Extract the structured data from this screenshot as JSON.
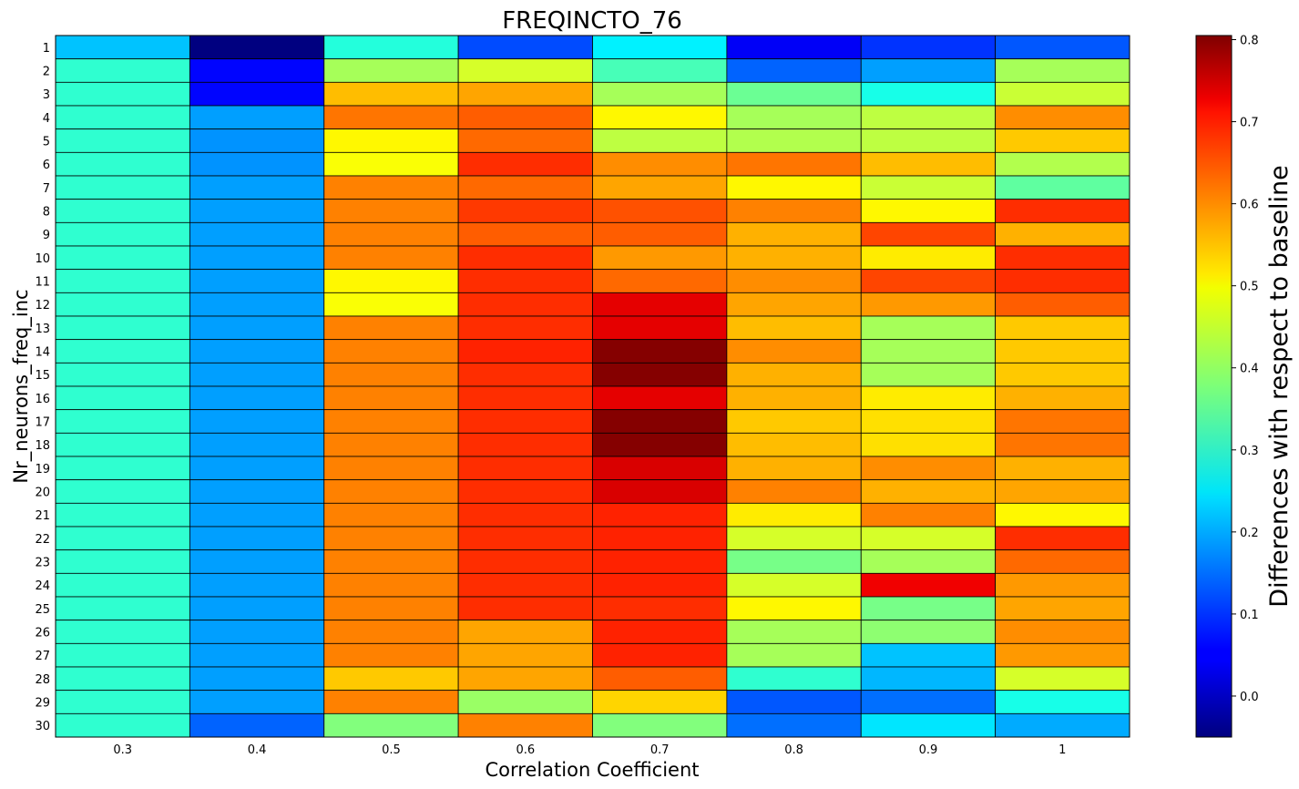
{
  "chart_data": {
    "type": "heatmap",
    "title": "FREQINCTO_76",
    "xlabel": "Correlation Coefficient",
    "ylabel": "Nr_neurons_freq_inc",
    "colorbar_label": "Differences with respect to baseline",
    "colormap": "jet",
    "vmin": -0.05,
    "vmax": 0.805,
    "colorbar_ticks": [
      "0.0",
      "0.1",
      "0.2",
      "0.3",
      "0.4",
      "0.5",
      "0.6",
      "0.7",
      "0.8"
    ],
    "x_categories": [
      "0.3",
      "0.4",
      "0.5",
      "0.6",
      "0.7",
      "0.8",
      "0.9",
      "1"
    ],
    "y_categories": [
      "1",
      "2",
      "3",
      "4",
      "5",
      "6",
      "7",
      "8",
      "9",
      "10",
      "11",
      "12",
      "13",
      "14",
      "15",
      "16",
      "17",
      "18",
      "19",
      "20",
      "21",
      "22",
      "23",
      "24",
      "25",
      "26",
      "27",
      "28",
      "29",
      "30"
    ],
    "values": [
      [
        0.22,
        -0.05,
        0.3,
        0.12,
        0.26,
        0.05,
        0.1,
        0.13
      ],
      [
        0.31,
        0.06,
        0.41,
        0.45,
        0.33,
        0.14,
        0.19,
        0.41
      ],
      [
        0.31,
        0.06,
        0.54,
        0.56,
        0.41,
        0.36,
        0.29,
        0.44
      ],
      [
        0.31,
        0.19,
        0.6,
        0.62,
        0.49,
        0.41,
        0.43,
        0.58
      ],
      [
        0.31,
        0.18,
        0.49,
        0.61,
        0.43,
        0.42,
        0.43,
        0.53
      ],
      [
        0.31,
        0.18,
        0.48,
        0.66,
        0.58,
        0.6,
        0.54,
        0.42
      ],
      [
        0.31,
        0.19,
        0.59,
        0.61,
        0.56,
        0.49,
        0.44,
        0.35
      ],
      [
        0.31,
        0.19,
        0.59,
        0.65,
        0.63,
        0.59,
        0.49,
        0.66
      ],
      [
        0.31,
        0.19,
        0.59,
        0.62,
        0.62,
        0.55,
        0.64,
        0.55
      ],
      [
        0.31,
        0.19,
        0.59,
        0.66,
        0.57,
        0.55,
        0.5,
        0.66
      ],
      [
        0.31,
        0.19,
        0.49,
        0.66,
        0.61,
        0.58,
        0.64,
        0.66
      ],
      [
        0.31,
        0.19,
        0.48,
        0.66,
        0.72,
        0.56,
        0.57,
        0.62
      ],
      [
        0.31,
        0.19,
        0.59,
        0.66,
        0.72,
        0.54,
        0.41,
        0.53
      ],
      [
        0.31,
        0.19,
        0.59,
        0.67,
        0.8,
        0.58,
        0.41,
        0.53
      ],
      [
        0.31,
        0.19,
        0.59,
        0.66,
        0.8,
        0.55,
        0.41,
        0.53
      ],
      [
        0.31,
        0.19,
        0.59,
        0.66,
        0.72,
        0.55,
        0.5,
        0.55
      ],
      [
        0.31,
        0.19,
        0.59,
        0.66,
        0.8,
        0.53,
        0.51,
        0.6
      ],
      [
        0.31,
        0.19,
        0.59,
        0.66,
        0.8,
        0.54,
        0.51,
        0.6
      ],
      [
        0.31,
        0.19,
        0.59,
        0.66,
        0.73,
        0.55,
        0.58,
        0.55
      ],
      [
        0.31,
        0.19,
        0.59,
        0.66,
        0.73,
        0.59,
        0.55,
        0.56
      ],
      [
        0.31,
        0.19,
        0.59,
        0.66,
        0.67,
        0.5,
        0.59,
        0.49
      ],
      [
        0.31,
        0.19,
        0.59,
        0.66,
        0.67,
        0.45,
        0.45,
        0.66
      ],
      [
        0.31,
        0.19,
        0.59,
        0.66,
        0.67,
        0.37,
        0.41,
        0.61
      ],
      [
        0.31,
        0.19,
        0.59,
        0.66,
        0.67,
        0.45,
        0.71,
        0.57
      ],
      [
        0.31,
        0.19,
        0.59,
        0.66,
        0.66,
        0.49,
        0.37,
        0.56
      ],
      [
        0.31,
        0.19,
        0.59,
        0.56,
        0.67,
        0.41,
        0.39,
        0.58
      ],
      [
        0.31,
        0.19,
        0.59,
        0.56,
        0.67,
        0.41,
        0.22,
        0.57
      ],
      [
        0.31,
        0.19,
        0.53,
        0.56,
        0.62,
        0.31,
        0.21,
        0.45
      ],
      [
        0.31,
        0.19,
        0.59,
        0.4,
        0.52,
        0.13,
        0.15,
        0.29
      ],
      [
        0.31,
        0.14,
        0.38,
        0.59,
        0.38,
        0.15,
        0.25,
        0.2
      ]
    ]
  }
}
